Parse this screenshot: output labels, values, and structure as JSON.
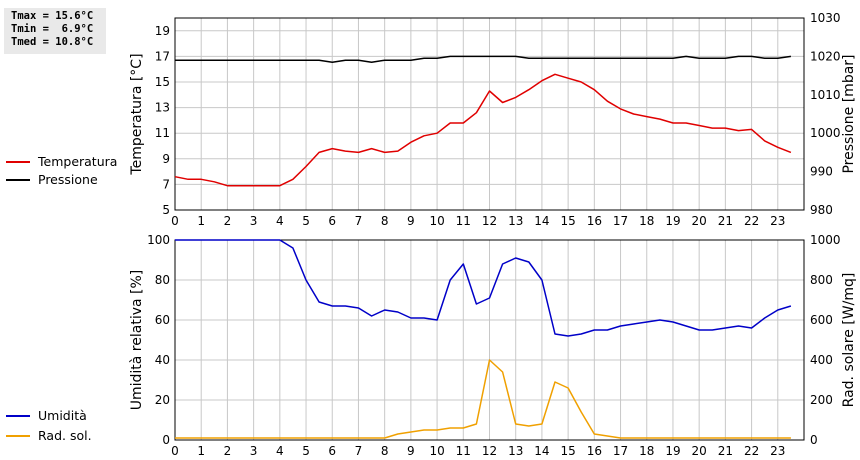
{
  "stats": {
    "tmax": "Tmax = 15.6°C",
    "tmin": "Tmin =  6.9°C",
    "tmed": "Tmed = 10.8°C"
  },
  "colors": {
    "temperature": "#e00000",
    "pressure": "#000000",
    "humidity": "#0000c8",
    "radiation": "#f0a000",
    "grid": "#c8c8c8"
  },
  "legend_top": [
    {
      "label": "Temperatura",
      "color": "#e00000"
    },
    {
      "label": "Pressione",
      "color": "#000000"
    }
  ],
  "legend_bottom": [
    {
      "label": "Umidità",
      "color": "#0000c8"
    },
    {
      "label": "Rad. sol.",
      "color": "#f0a000"
    }
  ],
  "chart_data": [
    {
      "type": "line",
      "ylabel": "Temperatura [°C]",
      "y2label": "Pressione [mbar]",
      "ylim": [
        5,
        20
      ],
      "yticks": [
        5,
        7,
        9,
        11,
        13,
        15,
        17,
        19
      ],
      "y2lim": [
        980,
        1030
      ],
      "y2ticks": [
        980,
        990,
        1000,
        1010,
        1020,
        1030
      ],
      "xlim": [
        0,
        24
      ],
      "xticks": [
        0,
        1,
        2,
        3,
        4,
        5,
        6,
        7,
        8,
        9,
        10,
        11,
        12,
        13,
        14,
        15,
        16,
        17,
        18,
        19,
        20,
        21,
        22,
        23
      ],
      "grid": true,
      "series": [
        {
          "name": "Temperatura",
          "axis": "left",
          "color": "#e00000",
          "x": [
            0,
            0.5,
            1,
            1.5,
            2,
            2.5,
            3,
            3.5,
            4,
            4.5,
            5,
            5.5,
            6,
            6.5,
            7,
            7.5,
            8,
            8.5,
            9,
            9.5,
            10,
            10.5,
            11,
            11.5,
            12,
            12.5,
            13,
            13.5,
            14,
            14.5,
            15,
            15.5,
            16,
            16.5,
            17,
            17.5,
            18,
            18.5,
            19,
            19.5,
            20,
            20.5,
            21,
            21.5,
            22,
            22.5,
            23,
            23.5
          ],
          "y": [
            7.6,
            7.4,
            7.4,
            7.2,
            6.9,
            6.9,
            6.9,
            6.9,
            6.9,
            7.4,
            8.4,
            9.5,
            9.8,
            9.6,
            9.5,
            9.8,
            9.5,
            9.6,
            10.3,
            10.8,
            11.0,
            11.8,
            11.8,
            12.6,
            14.3,
            13.4,
            13.8,
            14.4,
            15.1,
            15.6,
            15.3,
            15.0,
            14.4,
            13.5,
            12.9,
            12.5,
            12.3,
            12.1,
            11.8,
            11.8,
            11.6,
            11.4,
            11.4,
            11.2,
            11.3,
            10.4,
            9.9,
            9.5
          ]
        },
        {
          "name": "Pressione",
          "axis": "right",
          "color": "#000000",
          "x": [
            0,
            0.5,
            1,
            1.5,
            2,
            2.5,
            3,
            3.5,
            4,
            4.5,
            5,
            5.5,
            6,
            6.5,
            7,
            7.5,
            8,
            8.5,
            9,
            9.5,
            10,
            10.5,
            11,
            11.5,
            12,
            12.5,
            13,
            13.5,
            14,
            14.5,
            15,
            15.5,
            16,
            16.5,
            17,
            17.5,
            18,
            18.5,
            19,
            19.5,
            20,
            20.5,
            21,
            21.5,
            22,
            22.5,
            23,
            23.5
          ],
          "y": [
            1019,
            1019,
            1019,
            1019,
            1019,
            1019,
            1019,
            1019,
            1019,
            1019,
            1019,
            1019,
            1018.5,
            1019,
            1019,
            1018.5,
            1019,
            1019,
            1019,
            1019.5,
            1019.5,
            1020,
            1020,
            1020,
            1020,
            1020,
            1020,
            1019.5,
            1019.5,
            1019.5,
            1019.5,
            1019.5,
            1019.5,
            1019.5,
            1019.5,
            1019.5,
            1019.5,
            1019.5,
            1019.5,
            1020,
            1019.5,
            1019.5,
            1019.5,
            1020,
            1020,
            1019.5,
            1019.5,
            1020
          ]
        }
      ]
    },
    {
      "type": "line",
      "ylabel": "Umidità relativa [%]",
      "y2label": "Rad. solare [W/mq]",
      "ylim": [
        0,
        100
      ],
      "yticks": [
        0,
        20,
        40,
        60,
        80,
        100
      ],
      "y2lim": [
        0,
        1000
      ],
      "y2ticks": [
        0,
        200,
        400,
        600,
        800,
        1000
      ],
      "xlim": [
        0,
        24
      ],
      "xticks": [
        0,
        1,
        2,
        3,
        4,
        5,
        6,
        7,
        8,
        9,
        10,
        11,
        12,
        13,
        14,
        15,
        16,
        17,
        18,
        19,
        20,
        21,
        22,
        23
      ],
      "grid": true,
      "series": [
        {
          "name": "Umidità",
          "axis": "left",
          "color": "#0000c8",
          "x": [
            0,
            0.5,
            1,
            1.5,
            2,
            2.5,
            3,
            3.5,
            4,
            4.5,
            5,
            5.5,
            6,
            6.5,
            7,
            7.5,
            8,
            8.5,
            9,
            9.5,
            10,
            10.5,
            11,
            11.5,
            12,
            12.5,
            13,
            13.5,
            14,
            14.5,
            15,
            15.5,
            16,
            16.5,
            17,
            17.5,
            18,
            18.5,
            19,
            19.5,
            20,
            20.5,
            21,
            21.5,
            22,
            22.5,
            23,
            23.5
          ],
          "y": [
            100,
            100,
            100,
            100,
            100,
            100,
            100,
            100,
            100,
            96,
            80,
            69,
            67,
            67,
            66,
            62,
            65,
            64,
            61,
            61,
            60,
            80,
            88,
            68,
            71,
            88,
            91,
            89,
            80,
            53,
            52,
            53,
            55,
            55,
            57,
            58,
            59,
            60,
            59,
            57,
            55,
            55,
            56,
            57,
            56,
            61,
            65,
            67
          ]
        },
        {
          "name": "Rad. sol.",
          "axis": "right",
          "color": "#f0a000",
          "x": [
            0,
            0.5,
            1,
            1.5,
            2,
            2.5,
            3,
            3.5,
            4,
            4.5,
            5,
            5.5,
            6,
            6.5,
            7,
            7.5,
            8,
            8.5,
            9,
            9.5,
            10,
            10.5,
            11,
            11.5,
            12,
            12.5,
            13,
            13.5,
            14,
            14.5,
            15,
            15.5,
            16,
            16.5,
            17,
            17.5,
            18,
            18.5,
            19,
            19.5,
            20,
            20.5,
            21,
            21.5,
            22,
            22.5,
            23,
            23.5
          ],
          "y": [
            10,
            10,
            10,
            10,
            10,
            10,
            10,
            10,
            10,
            10,
            10,
            10,
            10,
            10,
            10,
            10,
            10,
            30,
            40,
            50,
            50,
            60,
            60,
            80,
            400,
            340,
            80,
            70,
            80,
            290,
            260,
            140,
            30,
            20,
            10,
            10,
            10,
            10,
            10,
            10,
            10,
            10,
            10,
            10,
            10,
            10,
            10,
            10
          ]
        }
      ]
    }
  ]
}
